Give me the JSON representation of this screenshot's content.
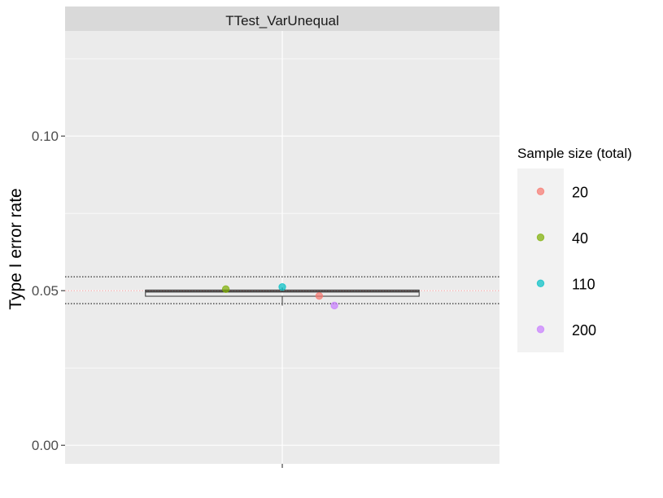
{
  "chart_data": {
    "type": "boxplot-with-points",
    "facet_title": "TTest_VarUnequal",
    "ylabel": "Type I error rate",
    "xlabel": "",
    "ylim": [
      -0.006,
      0.134
    ],
    "y_ticks": [
      0.0,
      0.05,
      0.1
    ],
    "y_tick_labels": [
      "0.00",
      "0.05",
      "0.10"
    ],
    "grid": true,
    "reference_lines": {
      "nominal": 0.05,
      "nominal_color": "#f4a3a3",
      "bounds": [
        0.0458,
        0.0545
      ]
    },
    "box": {
      "q1": 0.0482,
      "median": 0.0497,
      "q3": 0.0502,
      "whisker_low": 0.0452,
      "whisker_high": 0.051
    },
    "legend": {
      "title": "Sample size (total)",
      "position": "right",
      "entries": [
        {
          "label": "20",
          "color": "#F8766D"
        },
        {
          "label": "40",
          "color": "#7CAE00"
        },
        {
          "label": "110",
          "color": "#00BFC4"
        },
        {
          "label": "200",
          "color": "#C77CFF"
        }
      ]
    },
    "points": [
      {
        "group": "20",
        "y": 0.0483,
        "jitter": 0.17
      },
      {
        "group": "40",
        "y": 0.0505,
        "jitter": -0.26
      },
      {
        "group": "110",
        "y": 0.0512,
        "jitter": 0.0
      },
      {
        "group": "200",
        "y": 0.0452,
        "jitter": 0.24
      }
    ]
  }
}
